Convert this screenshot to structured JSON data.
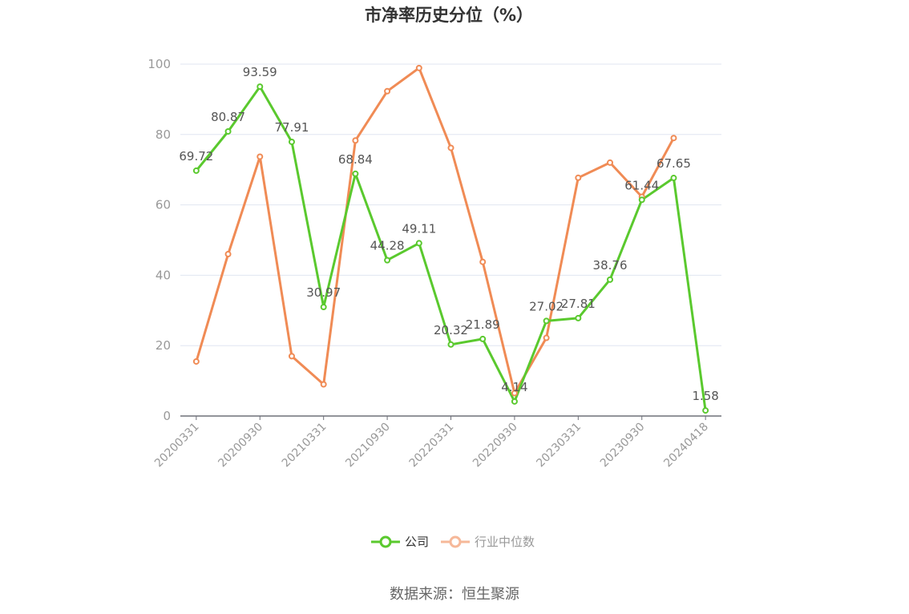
{
  "chart_data": {
    "type": "line",
    "title": "市净率历史分位（%）",
    "source": "数据来源：恒生聚源",
    "ylim": [
      0,
      100
    ],
    "yticks": [
      0,
      20,
      40,
      60,
      80,
      100
    ],
    "x": [
      "20200331",
      "20200630",
      "20200930",
      "20201231",
      "20210331",
      "20210630",
      "20210930",
      "20211231",
      "20220331",
      "20220630",
      "20220930",
      "20221231",
      "20230331",
      "20230630",
      "20230930",
      "20231231",
      "20240418"
    ],
    "xticks_shown": [
      "20200331",
      "20200930",
      "20210331",
      "20210930",
      "20220331",
      "20220930",
      "20230331",
      "20230930",
      "20240418"
    ],
    "series": [
      {
        "name": "公司",
        "color": "#5ac92e",
        "values": [
          69.72,
          80.87,
          93.59,
          77.91,
          30.97,
          68.84,
          44.28,
          49.11,
          20.32,
          21.89,
          4.14,
          27.02,
          27.81,
          38.76,
          61.44,
          67.65,
          1.58
        ],
        "labels": [
          "69.72",
          "80.87",
          "93.59",
          "77.91",
          "30.97",
          "68.84",
          "44.28",
          "49.11",
          "20.32",
          "21.89",
          "4.14",
          "27.02",
          "27.81",
          "38.76",
          "61.44",
          "67.65",
          "1.58"
        ]
      },
      {
        "name": "行业中位数",
        "color": "#f08b55",
        "values": [
          15.5,
          46,
          73.7,
          17,
          9,
          78.3,
          92.3,
          98.9,
          76.2,
          43.8,
          6.5,
          22.2,
          67.7,
          72,
          62.3,
          79,
          null
        ]
      }
    ],
    "grid": true,
    "legend_position": "bottom"
  }
}
